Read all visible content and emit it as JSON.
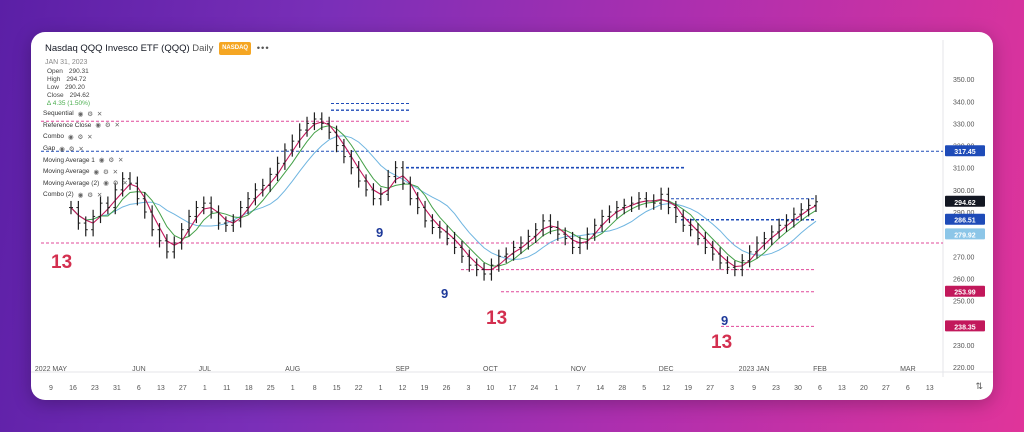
{
  "header": {
    "title": "Nasdaq QQQ Invesco ETF (QQQ)",
    "interval": "Daily",
    "exchange": "NASDAQ",
    "date": "JAN 31, 2023"
  },
  "ohlc": {
    "open_label": "Open",
    "open": "290.31",
    "high_label": "High",
    "high": "294.72",
    "low_label": "Low",
    "low": "290.20",
    "close_label": "Close",
    "close": "294.62",
    "change": "4.35 (1.50%)"
  },
  "indicators": [
    "Sequential",
    "Reference Close",
    "Combo",
    "Gap",
    "Moving Average 1",
    "Moving Average",
    "Moving Average (2)",
    "Combo (2)"
  ],
  "colors": {
    "up": "#3d8bfd",
    "bar": "#1f1f1f",
    "ma_pink": "#c2185b",
    "ma_green": "#43a047",
    "ma_blue": "#6fb5e0",
    "seq_blue": "#1e3a9a",
    "seq_red": "#d32f4f",
    "ref_blue": "#1e4bb8",
    "ref_pink": "#e0489a"
  },
  "chart_data": {
    "type": "ohlc-line",
    "ylim": [
      220,
      360
    ],
    "y_ticks": [
      "350.00",
      "340.00",
      "330.00",
      "320.00",
      "310.00",
      "300.00",
      "290.00",
      "280.00",
      "270.00",
      "260.00",
      "250.00",
      "240.00",
      "230.00",
      "220.00"
    ],
    "y_tick_values": [
      350,
      340,
      330,
      320,
      310,
      300,
      290,
      280,
      270,
      260,
      250,
      240,
      230,
      220
    ],
    "price_labels": [
      {
        "value": 317.45,
        "text": "317.45",
        "color": "#1e4bb8"
      },
      {
        "value": 294.62,
        "text": "294.62",
        "color": "#131722"
      },
      {
        "value": 286.51,
        "text": "286.51",
        "color": "#1e4bb8"
      },
      {
        "value": 279.92,
        "text": "279.92",
        "color": "#8cc6e8"
      },
      {
        "value": 253.99,
        "text": "253.99",
        "color": "#c2185b"
      },
      {
        "value": 238.35,
        "text": "238.35",
        "color": "#c2185b"
      }
    ],
    "x_day_labels": [
      "9",
      "16",
      "23",
      "31",
      "6",
      "13",
      "27",
      "1",
      "11",
      "18",
      "25",
      "1",
      "8",
      "15",
      "22",
      "1",
      "12",
      "19",
      "26",
      "3",
      "10",
      "17",
      "24",
      "1",
      "7",
      "14",
      "28",
      "5",
      "12",
      "19",
      "27",
      "3",
      "9",
      "23",
      "30",
      "6",
      "13",
      "20",
      "27",
      "6",
      "13"
    ],
    "x_month_labels": [
      "2022 MAY",
      "JUN",
      "JUL",
      "AUG",
      "SEP",
      "OCT",
      "NOV",
      "DEC",
      "2023 JAN",
      "FEB",
      "MAR"
    ],
    "close": [
      292,
      285,
      282,
      288,
      294,
      292,
      300,
      305,
      303,
      296,
      290,
      282,
      277,
      272,
      276,
      282,
      288,
      292,
      294,
      290,
      285,
      284,
      286,
      292,
      296,
      300,
      302,
      307,
      312,
      318,
      322,
      327,
      330,
      332,
      330,
      326,
      320,
      315,
      310,
      304,
      300,
      296,
      298,
      306,
      310,
      303,
      296,
      292,
      286,
      283,
      281,
      278,
      274,
      270,
      266,
      264,
      262,
      266,
      270,
      271,
      274,
      276,
      279,
      282,
      286,
      283,
      280,
      278,
      274,
      276,
      280,
      284,
      288,
      290,
      292,
      293,
      294,
      296,
      295,
      294,
      298,
      292,
      288,
      284,
      282,
      278,
      274,
      271,
      267,
      265,
      264,
      268,
      272,
      276,
      278,
      281,
      284,
      286,
      289,
      291,
      293,
      294.62
    ],
    "sequential_marks": [
      {
        "text": "13",
        "color": "#d32f4f",
        "size": "big"
      },
      {
        "text": "9",
        "color": "#1e3a9a",
        "size": "mid"
      },
      {
        "text": "9",
        "color": "#1e3a9a",
        "size": "mid"
      },
      {
        "text": "13",
        "color": "#d32f4f",
        "size": "big"
      },
      {
        "text": "9",
        "color": "#1e3a9a",
        "size": "mid"
      },
      {
        "text": "13",
        "color": "#d32f4f",
        "size": "big"
      }
    ]
  }
}
